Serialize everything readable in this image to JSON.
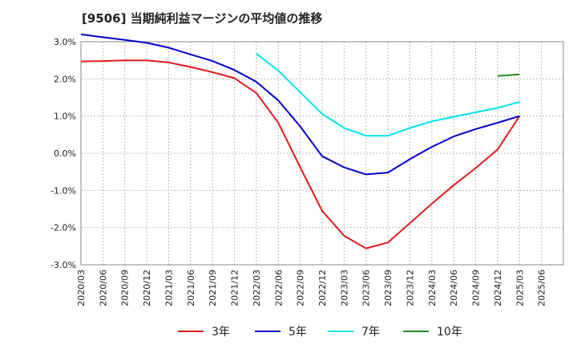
{
  "title": "[9506]  当期純利益マージンの平均値の推移",
  "chart_data": {
    "type": "line",
    "ylim": [
      -3.0,
      3.0
    ],
    "y_ticks": [
      3.0,
      2.0,
      1.0,
      0.0,
      -1.0,
      -2.0,
      -3.0
    ],
    "y_tick_labels": [
      "3.0%",
      "2.0%",
      "1.0%",
      "0.0%",
      "-1.0%",
      "-2.0%",
      "-3.0%"
    ],
    "x_ticks": [
      "2020/03",
      "2020/06",
      "2020/09",
      "2020/12",
      "2021/03",
      "2021/06",
      "2021/09",
      "2021/12",
      "2022/03",
      "2022/06",
      "2022/09",
      "2022/12",
      "2023/03",
      "2023/06",
      "2023/09",
      "2023/12",
      "2024/03",
      "2024/06",
      "2024/09",
      "2024/12",
      "2025/03",
      "2025/06"
    ],
    "grid": true,
    "legend": "bottom",
    "series": [
      {
        "name": "3年",
        "color": "#e31a1c",
        "x": [
          "2020/03",
          "2020/06",
          "2020/09",
          "2020/12",
          "2021/03",
          "2021/06",
          "2021/09",
          "2021/12",
          "2022/03",
          "2022/06",
          "2022/09",
          "2022/12",
          "2023/03",
          "2023/06",
          "2023/09",
          "2023/12",
          "2024/03",
          "2024/06",
          "2024/09",
          "2024/12",
          "2025/03"
        ],
        "values": [
          2.47,
          2.48,
          2.5,
          2.5,
          2.44,
          2.32,
          2.18,
          2.02,
          1.62,
          0.82,
          -0.38,
          -1.55,
          -2.22,
          -2.56,
          -2.4,
          -1.88,
          -1.36,
          -0.86,
          -0.4,
          0.1,
          1.0
        ]
      },
      {
        "name": "5年",
        "color": "#0000cc",
        "x": [
          "2020/03",
          "2020/06",
          "2020/09",
          "2020/12",
          "2021/03",
          "2021/06",
          "2021/09",
          "2021/12",
          "2022/03",
          "2022/06",
          "2022/09",
          "2022/12",
          "2023/03",
          "2023/06",
          "2023/09",
          "2023/12",
          "2024/03",
          "2024/06",
          "2024/09",
          "2024/12",
          "2025/03"
        ],
        "values": [
          3.2,
          3.12,
          3.05,
          2.97,
          2.84,
          2.66,
          2.48,
          2.24,
          1.92,
          1.42,
          0.72,
          -0.08,
          -0.38,
          -0.57,
          -0.52,
          -0.16,
          0.17,
          0.45,
          0.65,
          0.82,
          1.0
        ]
      },
      {
        "name": "7年",
        "color": "#00e5ee",
        "x": [
          "2022/03",
          "2022/06",
          "2022/09",
          "2022/12",
          "2023/03",
          "2023/06",
          "2023/09",
          "2023/12",
          "2024/03",
          "2024/06",
          "2024/09",
          "2024/12",
          "2025/03"
        ],
        "values": [
          2.68,
          2.22,
          1.64,
          1.06,
          0.68,
          0.47,
          0.47,
          0.68,
          0.86,
          0.98,
          1.1,
          1.22,
          1.38
        ]
      },
      {
        "name": "10年",
        "color": "#228b22",
        "x": [
          "2024/12",
          "2025/03"
        ],
        "values": [
          2.08,
          2.12
        ]
      }
    ]
  }
}
